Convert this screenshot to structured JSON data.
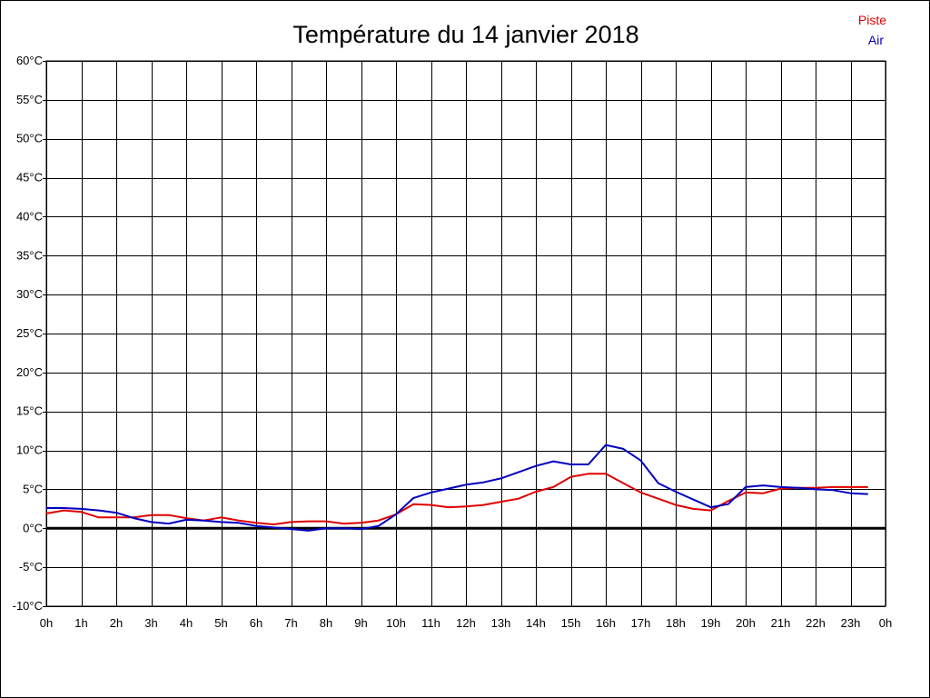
{
  "chart_data": {
    "type": "line",
    "title": "Température du 14 janvier 2018",
    "xlabel": "",
    "ylabel": "",
    "grid": true,
    "legend_position": "top-right",
    "x_tick_labels": [
      "0h",
      "1h",
      "2h",
      "3h",
      "4h",
      "5h",
      "6h",
      "7h",
      "8h",
      "9h",
      "10h",
      "11h",
      "12h",
      "13h",
      "14h",
      "15h",
      "16h",
      "17h",
      "18h",
      "19h",
      "20h",
      "21h",
      "22h",
      "23h",
      "0h"
    ],
    "y_tick_labels": [
      "60°C",
      "55°C",
      "50°C",
      "45°C",
      "40°C",
      "35°C",
      "30°C",
      "25°C",
      "20°C",
      "15°C",
      "10°C",
      "5°C",
      "0°C",
      "-5°C",
      "-10°C"
    ],
    "y_ticks": [
      60,
      55,
      50,
      45,
      40,
      35,
      30,
      25,
      20,
      15,
      10,
      5,
      0,
      -5,
      -10
    ],
    "xlim": [
      0,
      24
    ],
    "ylim": [
      -10,
      60
    ],
    "zero_line_color": "#000000",
    "x": [
      0,
      0.5,
      1,
      1.5,
      2,
      2.5,
      3,
      3.5,
      4,
      4.5,
      5,
      5.5,
      6,
      6.5,
      7,
      7.5,
      8,
      8.5,
      9,
      9.5,
      10,
      10.5,
      11,
      11.5,
      12,
      12.5,
      13,
      13.5,
      14,
      14.5,
      15,
      15.5,
      16,
      16.5,
      17,
      17.5,
      18,
      18.5,
      19,
      19.5,
      20,
      20.5,
      21,
      21.5,
      22,
      22.5,
      23,
      23.5
    ],
    "series": [
      {
        "name": "Piste",
        "color": "#e00000",
        "values": [
          1.9,
          2.3,
          2.1,
          1.4,
          1.4,
          1.4,
          1.7,
          1.7,
          1.3,
          1.0,
          1.4,
          1.0,
          0.7,
          0.5,
          0.8,
          0.9,
          0.9,
          0.6,
          0.7,
          1.0,
          1.8,
          3.1,
          3.0,
          2.7,
          2.8,
          3.0,
          3.4,
          3.8,
          4.7,
          5.3,
          6.6,
          7.0,
          7.0,
          5.8,
          4.6,
          3.8,
          3.0,
          2.5,
          2.3,
          3.5,
          4.6,
          4.5,
          5.1,
          5.2,
          5.2,
          5.3,
          5.3,
          5.3
        ]
      },
      {
        "name": "Air",
        "color": "#0000c0",
        "values": [
          2.6,
          2.6,
          2.5,
          2.3,
          2.0,
          1.3,
          0.8,
          0.6,
          1.1,
          1.0,
          0.8,
          0.7,
          0.3,
          0.1,
          -0.1,
          -0.3,
          0.0,
          0.0,
          -0.1,
          0.3,
          1.8,
          3.9,
          4.6,
          5.1,
          5.6,
          5.9,
          6.4,
          7.2,
          8.0,
          8.6,
          8.2,
          8.2,
          10.7,
          10.2,
          8.7,
          5.8,
          4.7,
          3.7,
          2.7,
          3.1,
          5.3,
          5.5,
          5.3,
          5.2,
          5.0,
          4.9,
          4.5,
          4.4
        ]
      }
    ]
  }
}
